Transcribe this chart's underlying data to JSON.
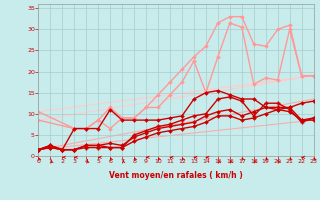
{
  "background_color": "#c8ecec",
  "grid_color": "#a8cccc",
  "xlabel": "Vent moyen/en rafales ( km/h )",
  "label_color": "#cc0000",
  "yticks": [
    0,
    5,
    10,
    15,
    20,
    25,
    30,
    35
  ],
  "xticks": [
    0,
    1,
    2,
    3,
    4,
    5,
    6,
    7,
    8,
    9,
    10,
    11,
    12,
    13,
    14,
    15,
    16,
    17,
    18,
    19,
    20,
    21,
    22,
    23
  ],
  "xlim": [
    0,
    23
  ],
  "ylim": [
    0,
    36
  ],
  "lines": [
    {
      "x": [
        0,
        23
      ],
      "y": [
        1.5,
        8.5
      ],
      "color": "#ffaaaa",
      "lw": 0.8,
      "marker": null,
      "ms": 0,
      "zorder": 1
    },
    {
      "x": [
        0,
        23
      ],
      "y": [
        1.5,
        13.5
      ],
      "color": "#ffaaaa",
      "lw": 0.8,
      "marker": null,
      "ms": 0,
      "zorder": 1
    },
    {
      "x": [
        0,
        23
      ],
      "y": [
        8.5,
        19.0
      ],
      "color": "#ffcccc",
      "lw": 0.8,
      "marker": null,
      "ms": 0,
      "zorder": 1
    },
    {
      "x": [
        0,
        23
      ],
      "y": [
        10.5,
        19.0
      ],
      "color": "#ffcccc",
      "lw": 0.8,
      "marker": null,
      "ms": 0,
      "zorder": 1
    },
    {
      "x": [
        0,
        1,
        2,
        3,
        4,
        5,
        6,
        7,
        8,
        9,
        10,
        11,
        12,
        13,
        14,
        15,
        16,
        17,
        18,
        19,
        20,
        21,
        22,
        23
      ],
      "y": [
        1.5,
        2.0,
        1.5,
        1.5,
        2.5,
        2.5,
        2.0,
        2.0,
        3.5,
        4.5,
        5.5,
        6.0,
        6.5,
        7.0,
        8.0,
        9.5,
        9.5,
        8.5,
        9.0,
        10.0,
        11.0,
        10.5,
        8.5,
        8.5
      ],
      "color": "#cc0000",
      "lw": 1.0,
      "marker": "D",
      "ms": 2.0,
      "zorder": 3
    },
    {
      "x": [
        0,
        1,
        2,
        3,
        4,
        5,
        6,
        7,
        8,
        9,
        10,
        11,
        12,
        13,
        14,
        15,
        16,
        17,
        18,
        19,
        20,
        21,
        22,
        23
      ],
      "y": [
        1.5,
        2.5,
        1.5,
        1.5,
        2.5,
        2.5,
        3.0,
        2.5,
        4.5,
        5.5,
        6.5,
        7.0,
        7.5,
        8.0,
        9.5,
        10.5,
        11.0,
        9.5,
        10.5,
        11.5,
        11.5,
        11.5,
        8.5,
        9.0
      ],
      "color": "#cc0000",
      "lw": 1.0,
      "marker": "D",
      "ms": 2.0,
      "zorder": 3
    },
    {
      "x": [
        0,
        1,
        2,
        3,
        4,
        5,
        6,
        7,
        8,
        9,
        10,
        11,
        12,
        13,
        14,
        15,
        16,
        17,
        18,
        19,
        20,
        21,
        22,
        23
      ],
      "y": [
        1.5,
        2.5,
        1.5,
        1.5,
        2.0,
        2.0,
        2.0,
        2.0,
        5.0,
        6.0,
        7.0,
        7.5,
        8.5,
        9.5,
        10.0,
        13.5,
        14.0,
        13.0,
        9.5,
        12.5,
        12.5,
        11.0,
        8.0,
        9.0
      ],
      "color": "#cc0000",
      "lw": 1.0,
      "marker": "P",
      "ms": 2.5,
      "zorder": 3
    },
    {
      "x": [
        0,
        1,
        2,
        3,
        4,
        5,
        6,
        7,
        8,
        9,
        10,
        11,
        12,
        13,
        14,
        15,
        16,
        17,
        18,
        19,
        20,
        21,
        22,
        23
      ],
      "y": [
        1.5,
        2.0,
        1.5,
        6.5,
        6.5,
        6.5,
        11.0,
        8.5,
        8.5,
        8.5,
        8.5,
        9.0,
        9.5,
        13.5,
        15.0,
        15.5,
        14.5,
        13.5,
        13.5,
        11.5,
        11.0,
        11.5,
        12.5,
        13.0
      ],
      "color": "#cc0000",
      "lw": 1.0,
      "marker": "D",
      "ms": 2.0,
      "zorder": 3
    },
    {
      "x": [
        0,
        3,
        4,
        5,
        6,
        7,
        8,
        9,
        10,
        11,
        12,
        13,
        14,
        15,
        16,
        17,
        18,
        19,
        20,
        21,
        22,
        23
      ],
      "y": [
        8.5,
        6.5,
        6.5,
        8.5,
        6.5,
        9.0,
        9.0,
        11.5,
        11.5,
        14.5,
        17.5,
        22.5,
        15.0,
        23.5,
        31.5,
        30.5,
        17.0,
        18.5,
        18.0,
        30.0,
        19.0,
        19.0
      ],
      "color": "#ff9999",
      "lw": 1.0,
      "marker": "D",
      "ms": 2.0,
      "zorder": 2
    },
    {
      "x": [
        0,
        3,
        4,
        5,
        6,
        7,
        8,
        9,
        10,
        11,
        12,
        13,
        14,
        15,
        16,
        17,
        18,
        19,
        20,
        21,
        22,
        23
      ],
      "y": [
        10.5,
        6.5,
        6.5,
        8.5,
        11.5,
        9.0,
        9.0,
        11.5,
        14.5,
        17.5,
        20.5,
        23.5,
        26.0,
        31.5,
        33.0,
        33.0,
        26.5,
        26.0,
        30.0,
        31.0,
        19.0,
        19.0
      ],
      "color": "#ff9999",
      "lw": 1.0,
      "marker": "D",
      "ms": 2.0,
      "zorder": 2
    }
  ],
  "wind_arrows_x": [
    0,
    1,
    2,
    3,
    4,
    5,
    6,
    7,
    8,
    9,
    10,
    11,
    12,
    13,
    14,
    15,
    16,
    17,
    18,
    19,
    20,
    21,
    22,
    23
  ],
  "wind_angles_deg": [
    225,
    210,
    270,
    270,
    210,
    270,
    225,
    210,
    225,
    270,
    225,
    270,
    225,
    270,
    270,
    210,
    210,
    225,
    210,
    225,
    210,
    225,
    270,
    225
  ],
  "arrow_color": "#cc0000"
}
